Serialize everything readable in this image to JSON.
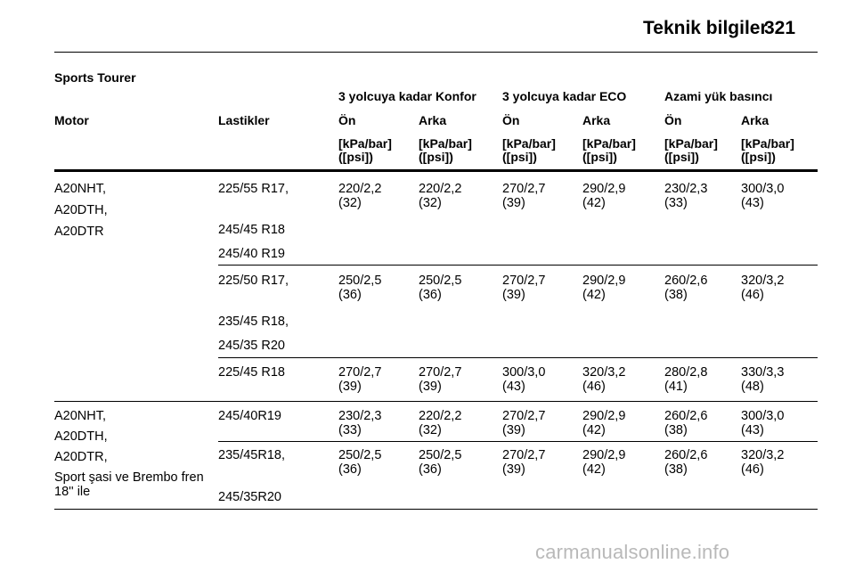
{
  "header": {
    "title": "Teknik bilgiler",
    "page_number": "321"
  },
  "section_title": "Sports Tourer",
  "table": {
    "group_headers": [
      "3 yolcuya kadar Konfor",
      "3 yolcuya kadar ECO",
      "Azami yük basıncı"
    ],
    "column_headers": [
      "Motor",
      "Lastikler",
      "Ön",
      "Arka",
      "Ön",
      "Arka",
      "Ön",
      "Arka"
    ],
    "unit_line1": "[kPa/bar]",
    "unit_line2": "([psi])",
    "groups": [
      {
        "motor": [
          "A20NHT,",
          "A20DTH,",
          "A20DTR"
        ],
        "blocks": [
          {
            "tires": [
              "225/55 R17,",
              "245/45 R18",
              "245/40 R19"
            ],
            "values": [
              [
                "220/2,2",
                "(32)"
              ],
              [
                "220/2,2",
                "(32)"
              ],
              [
                "270/2,7",
                "(39)"
              ],
              [
                "290/2,9",
                "(42)"
              ],
              [
                "230/2,3",
                "(33)"
              ],
              [
                "300/3,0",
                "(43)"
              ]
            ]
          },
          {
            "tires": [
              "225/50 R17,",
              "235/45 R18,",
              "245/35 R20"
            ],
            "values": [
              [
                "250/2,5",
                "(36)"
              ],
              [
                "250/2,5",
                "(36)"
              ],
              [
                "270/2,7",
                "(39)"
              ],
              [
                "290/2,9",
                "(42)"
              ],
              [
                "260/2,6",
                "(38)"
              ],
              [
                "320/3,2",
                "(46)"
              ]
            ]
          },
          {
            "tires": [
              "225/45 R18"
            ],
            "values": [
              [
                "270/2,7",
                "(39)"
              ],
              [
                "270/2,7",
                "(39)"
              ],
              [
                "300/3,0",
                "(43)"
              ],
              [
                "320/3,2",
                "(46)"
              ],
              [
                "280/2,8",
                "(41)"
              ],
              [
                "330/3,3",
                "(48)"
              ]
            ]
          }
        ]
      },
      {
        "motor": [
          "A20NHT,",
          "A20DTH,",
          "A20DTR,",
          "Sport şasi ve Brembo fren",
          "18'' ile"
        ],
        "blocks": [
          {
            "tires": [
              "245/40R19"
            ],
            "values": [
              [
                "230/2,3",
                "(33)"
              ],
              [
                "220/2,2",
                "(32)"
              ],
              [
                "270/2,7",
                "(39)"
              ],
              [
                "290/2,9",
                "(42)"
              ],
              [
                "260/2,6",
                "(38)"
              ],
              [
                "300/3,0",
                "(43)"
              ]
            ]
          },
          {
            "tires": [
              "235/45R18,",
              "245/35R20"
            ],
            "values": [
              [
                "250/2,5",
                "(36)"
              ],
              [
                "250/2,5",
                "(36)"
              ],
              [
                "270/2,7",
                "(39)"
              ],
              [
                "290/2,9",
                "(42)"
              ],
              [
                "260/2,6",
                "(38)"
              ],
              [
                "320/3,2",
                "(46)"
              ]
            ]
          }
        ]
      }
    ]
  },
  "footer": {
    "watermark": "carmanualsonline.info"
  }
}
